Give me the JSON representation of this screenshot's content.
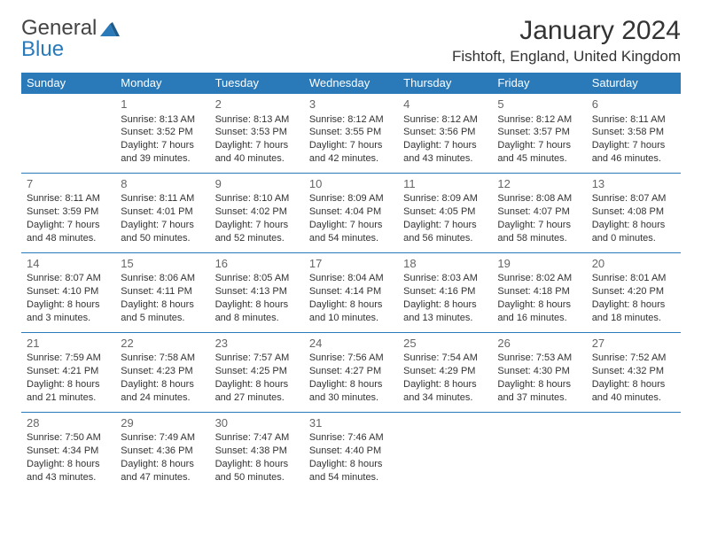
{
  "logo": {
    "word1": "General",
    "word2": "Blue"
  },
  "title": "January 2024",
  "location": "Fishtoft, England, United Kingdom",
  "colors": {
    "header_bg": "#2a7ab9",
    "header_text": "#ffffff",
    "border": "#2a7ab9",
    "text": "#333333",
    "daynum": "#666666",
    "background": "#ffffff"
  },
  "fonts": {
    "title_size": 30,
    "location_size": 17,
    "dayheader_size": 13,
    "cell_size": 11
  },
  "day_headers": [
    "Sunday",
    "Monday",
    "Tuesday",
    "Wednesday",
    "Thursday",
    "Friday",
    "Saturday"
  ],
  "weeks": [
    [
      {
        "day": ""
      },
      {
        "day": "1",
        "sunrise": "Sunrise: 8:13 AM",
        "sunset": "Sunset: 3:52 PM",
        "daylight": "Daylight: 7 hours and 39 minutes."
      },
      {
        "day": "2",
        "sunrise": "Sunrise: 8:13 AM",
        "sunset": "Sunset: 3:53 PM",
        "daylight": "Daylight: 7 hours and 40 minutes."
      },
      {
        "day": "3",
        "sunrise": "Sunrise: 8:12 AM",
        "sunset": "Sunset: 3:55 PM",
        "daylight": "Daylight: 7 hours and 42 minutes."
      },
      {
        "day": "4",
        "sunrise": "Sunrise: 8:12 AM",
        "sunset": "Sunset: 3:56 PM",
        "daylight": "Daylight: 7 hours and 43 minutes."
      },
      {
        "day": "5",
        "sunrise": "Sunrise: 8:12 AM",
        "sunset": "Sunset: 3:57 PM",
        "daylight": "Daylight: 7 hours and 45 minutes."
      },
      {
        "day": "6",
        "sunrise": "Sunrise: 8:11 AM",
        "sunset": "Sunset: 3:58 PM",
        "daylight": "Daylight: 7 hours and 46 minutes."
      }
    ],
    [
      {
        "day": "7",
        "sunrise": "Sunrise: 8:11 AM",
        "sunset": "Sunset: 3:59 PM",
        "daylight": "Daylight: 7 hours and 48 minutes."
      },
      {
        "day": "8",
        "sunrise": "Sunrise: 8:11 AM",
        "sunset": "Sunset: 4:01 PM",
        "daylight": "Daylight: 7 hours and 50 minutes."
      },
      {
        "day": "9",
        "sunrise": "Sunrise: 8:10 AM",
        "sunset": "Sunset: 4:02 PM",
        "daylight": "Daylight: 7 hours and 52 minutes."
      },
      {
        "day": "10",
        "sunrise": "Sunrise: 8:09 AM",
        "sunset": "Sunset: 4:04 PM",
        "daylight": "Daylight: 7 hours and 54 minutes."
      },
      {
        "day": "11",
        "sunrise": "Sunrise: 8:09 AM",
        "sunset": "Sunset: 4:05 PM",
        "daylight": "Daylight: 7 hours and 56 minutes."
      },
      {
        "day": "12",
        "sunrise": "Sunrise: 8:08 AM",
        "sunset": "Sunset: 4:07 PM",
        "daylight": "Daylight: 7 hours and 58 minutes."
      },
      {
        "day": "13",
        "sunrise": "Sunrise: 8:07 AM",
        "sunset": "Sunset: 4:08 PM",
        "daylight": "Daylight: 8 hours and 0 minutes."
      }
    ],
    [
      {
        "day": "14",
        "sunrise": "Sunrise: 8:07 AM",
        "sunset": "Sunset: 4:10 PM",
        "daylight": "Daylight: 8 hours and 3 minutes."
      },
      {
        "day": "15",
        "sunrise": "Sunrise: 8:06 AM",
        "sunset": "Sunset: 4:11 PM",
        "daylight": "Daylight: 8 hours and 5 minutes."
      },
      {
        "day": "16",
        "sunrise": "Sunrise: 8:05 AM",
        "sunset": "Sunset: 4:13 PM",
        "daylight": "Daylight: 8 hours and 8 minutes."
      },
      {
        "day": "17",
        "sunrise": "Sunrise: 8:04 AM",
        "sunset": "Sunset: 4:14 PM",
        "daylight": "Daylight: 8 hours and 10 minutes."
      },
      {
        "day": "18",
        "sunrise": "Sunrise: 8:03 AM",
        "sunset": "Sunset: 4:16 PM",
        "daylight": "Daylight: 8 hours and 13 minutes."
      },
      {
        "day": "19",
        "sunrise": "Sunrise: 8:02 AM",
        "sunset": "Sunset: 4:18 PM",
        "daylight": "Daylight: 8 hours and 16 minutes."
      },
      {
        "day": "20",
        "sunrise": "Sunrise: 8:01 AM",
        "sunset": "Sunset: 4:20 PM",
        "daylight": "Daylight: 8 hours and 18 minutes."
      }
    ],
    [
      {
        "day": "21",
        "sunrise": "Sunrise: 7:59 AM",
        "sunset": "Sunset: 4:21 PM",
        "daylight": "Daylight: 8 hours and 21 minutes."
      },
      {
        "day": "22",
        "sunrise": "Sunrise: 7:58 AM",
        "sunset": "Sunset: 4:23 PM",
        "daylight": "Daylight: 8 hours and 24 minutes."
      },
      {
        "day": "23",
        "sunrise": "Sunrise: 7:57 AM",
        "sunset": "Sunset: 4:25 PM",
        "daylight": "Daylight: 8 hours and 27 minutes."
      },
      {
        "day": "24",
        "sunrise": "Sunrise: 7:56 AM",
        "sunset": "Sunset: 4:27 PM",
        "daylight": "Daylight: 8 hours and 30 minutes."
      },
      {
        "day": "25",
        "sunrise": "Sunrise: 7:54 AM",
        "sunset": "Sunset: 4:29 PM",
        "daylight": "Daylight: 8 hours and 34 minutes."
      },
      {
        "day": "26",
        "sunrise": "Sunrise: 7:53 AM",
        "sunset": "Sunset: 4:30 PM",
        "daylight": "Daylight: 8 hours and 37 minutes."
      },
      {
        "day": "27",
        "sunrise": "Sunrise: 7:52 AM",
        "sunset": "Sunset: 4:32 PM",
        "daylight": "Daylight: 8 hours and 40 minutes."
      }
    ],
    [
      {
        "day": "28",
        "sunrise": "Sunrise: 7:50 AM",
        "sunset": "Sunset: 4:34 PM",
        "daylight": "Daylight: 8 hours and 43 minutes."
      },
      {
        "day": "29",
        "sunrise": "Sunrise: 7:49 AM",
        "sunset": "Sunset: 4:36 PM",
        "daylight": "Daylight: 8 hours and 47 minutes."
      },
      {
        "day": "30",
        "sunrise": "Sunrise: 7:47 AM",
        "sunset": "Sunset: 4:38 PM",
        "daylight": "Daylight: 8 hours and 50 minutes."
      },
      {
        "day": "31",
        "sunrise": "Sunrise: 7:46 AM",
        "sunset": "Sunset: 4:40 PM",
        "daylight": "Daylight: 8 hours and 54 minutes."
      },
      {
        "day": ""
      },
      {
        "day": ""
      },
      {
        "day": ""
      }
    ]
  ]
}
